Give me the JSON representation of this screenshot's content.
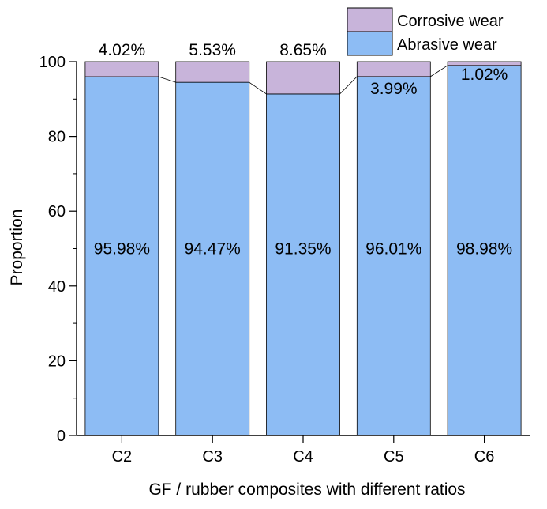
{
  "chart_data": {
    "type": "bar",
    "stacked": true,
    "title": "",
    "xlabel": "GF / rubber composites with different ratios",
    "ylabel": "Proportion",
    "ylim": [
      0,
      100
    ],
    "yticks": [
      "0",
      "20",
      "40",
      "60",
      "80",
      "100"
    ],
    "categories": [
      "C2",
      "C3",
      "C4",
      "C5",
      "C6"
    ],
    "series": [
      {
        "name": "Abrasive wear",
        "color": "#8dbcf4",
        "values": [
          95.98,
          94.47,
          91.35,
          96.01,
          98.98
        ],
        "labels": [
          "95.98%",
          "94.47%",
          "91.35%",
          "96.01%",
          "98.98%"
        ]
      },
      {
        "name": "Corrosive wear",
        "color": "#c8b4da",
        "values": [
          4.02,
          5.53,
          8.65,
          3.99,
          1.02
        ],
        "labels": [
          "4.02%",
          "5.53%",
          "8.65%",
          "3.99%",
          "1.02%"
        ]
      }
    ],
    "legend": {
      "position": "top-right",
      "order": [
        "Corrosive wear",
        "Abrasive wear"
      ]
    },
    "connect_lines": true,
    "grid": false
  }
}
